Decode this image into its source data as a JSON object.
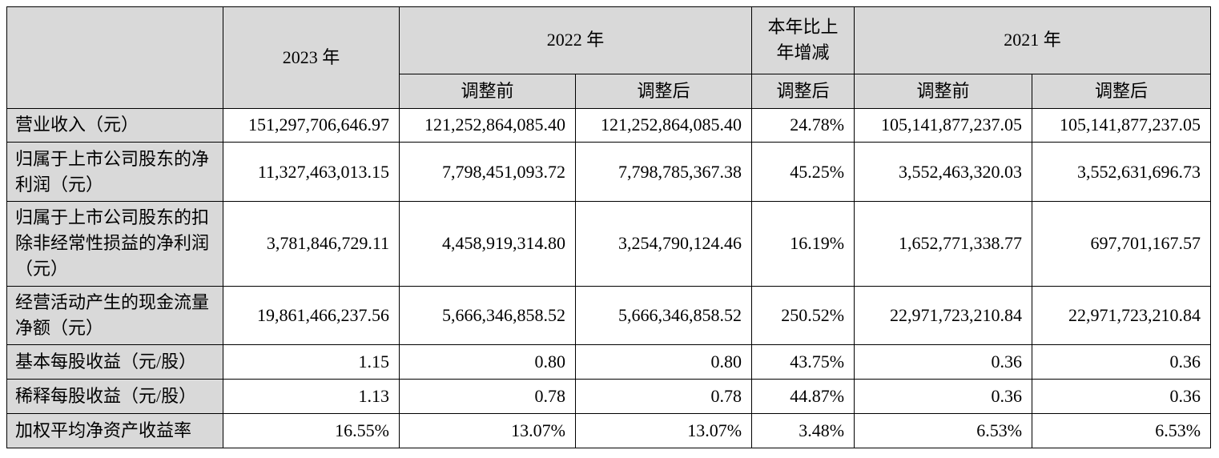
{
  "header": {
    "y2023": "2023 年",
    "y2022": "2022 年",
    "change": "本年比上年增减",
    "y2021": "2021 年",
    "before": "调整前",
    "after": "调整后",
    "change_after": "调整后"
  },
  "rows": [
    {
      "label": "营业收入（元）",
      "v2023": "151,297,706,646.97",
      "v2022b": "121,252,864,085.40",
      "v2022a": "121,252,864,085.40",
      "chg": "24.78%",
      "v2021b": "105,141,877,237.05",
      "v2021a": "105,141,877,237.05"
    },
    {
      "label": "归属于上市公司股东的净利润（元）",
      "v2023": "11,327,463,013.15",
      "v2022b": "7,798,451,093.72",
      "v2022a": "7,798,785,367.38",
      "chg": "45.25%",
      "v2021b": "3,552,463,320.03",
      "v2021a": "3,552,631,696.73"
    },
    {
      "label": "归属于上市公司股东的扣除非经常性损益的净利润（元）",
      "v2023": "3,781,846,729.11",
      "v2022b": "4,458,919,314.80",
      "v2022a": "3,254,790,124.46",
      "chg": "16.19%",
      "v2021b": "1,652,771,338.77",
      "v2021a": "697,701,167.57"
    },
    {
      "label": "经营活动产生的现金流量净额（元）",
      "v2023": "19,861,466,237.56",
      "v2022b": "5,666,346,858.52",
      "v2022a": "5,666,346,858.52",
      "chg": "250.52%",
      "v2021b": "22,971,723,210.84",
      "v2021a": "22,971,723,210.84"
    },
    {
      "label": "基本每股收益（元/股）",
      "v2023": "1.15",
      "v2022b": "0.80",
      "v2022a": "0.80",
      "chg": "43.75%",
      "v2021b": "0.36",
      "v2021a": "0.36"
    },
    {
      "label": "稀释每股收益（元/股）",
      "v2023": "1.13",
      "v2022b": "0.78",
      "v2022a": "0.78",
      "chg": "44.87%",
      "v2021b": "0.36",
      "v2021a": "0.36"
    },
    {
      "label": "加权平均净资产收益率",
      "v2023": "16.55%",
      "v2022b": "13.07%",
      "v2022a": "13.07%",
      "chg": "3.48%",
      "v2021b": "6.53%",
      "v2021a": "6.53%"
    }
  ]
}
